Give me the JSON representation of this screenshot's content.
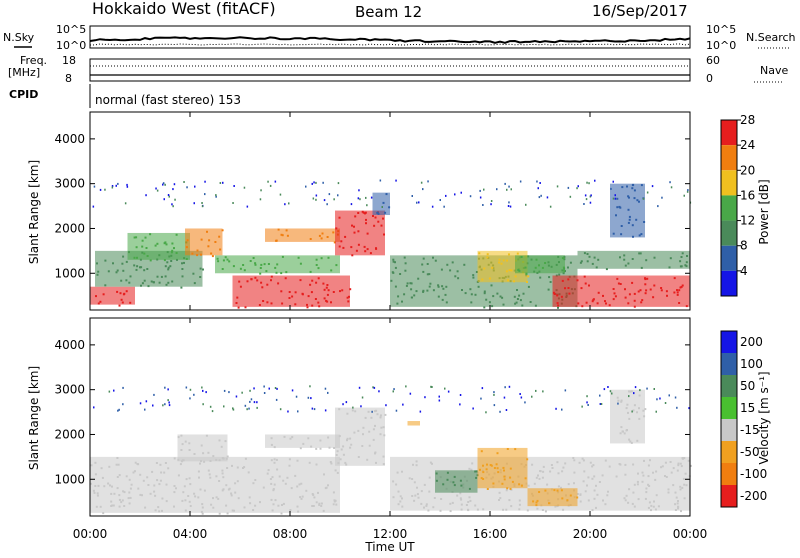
{
  "header": {
    "station": "Hokkaido West (fitACF)",
    "beam": "Beam 12",
    "date": "16/Sep/2017"
  },
  "mini_panels": {
    "nsky_label": "N.Sky",
    "nsearch_label": "N.Search",
    "freq_label_1": "Freq.",
    "freq_label_2": "[MHz]",
    "nave_label": "Nave",
    "cpid_label": "CPID",
    "cpid_text": "normal (fast stereo) 153",
    "noise_tick_top": "10^5",
    "noise_tick_bottom": "10^0",
    "freq_tick_top": "18",
    "freq_tick_bottom": "8",
    "nave_tick_top": "60",
    "nave_tick_bottom": "0"
  },
  "chart_data": [
    {
      "type": "heatmap",
      "name": "power",
      "ylabel": "Slant Range [km]",
      "yticks": [
        "1000",
        "2000",
        "3000",
        "4000"
      ],
      "ylim": [
        180,
        4600
      ],
      "colorbar_label": "Power [dB]",
      "colorbar_ticks": [
        "4",
        "8",
        "12",
        "16",
        "20",
        "24",
        "28"
      ],
      "colorbar_range": [
        0,
        30
      ],
      "colors": [
        "#1515e6",
        "#2f5fa8",
        "#4a8a5a",
        "#49a848",
        "#f0c020",
        "#f07e10",
        "#e61e1e"
      ],
      "regions": [
        {
          "t0": 0.0,
          "t1": 1.8,
          "r0": 300,
          "r1": 700,
          "level": 28
        },
        {
          "t0": 0.2,
          "t1": 4.5,
          "r0": 700,
          "r1": 1500,
          "level": 8
        },
        {
          "t0": 1.5,
          "t1": 4.0,
          "r0": 1300,
          "r1": 1900,
          "level": 14
        },
        {
          "t0": 3.8,
          "t1": 5.3,
          "r0": 1400,
          "r1": 2000,
          "level": 20
        },
        {
          "t0": 5.7,
          "t1": 10.4,
          "r0": 250,
          "r1": 950,
          "level": 28
        },
        {
          "t0": 5.0,
          "t1": 10.0,
          "r0": 1000,
          "r1": 1400,
          "level": 14
        },
        {
          "t0": 7.0,
          "t1": 10.0,
          "r0": 1700,
          "r1": 2000,
          "level": 20
        },
        {
          "t0": 9.8,
          "t1": 11.8,
          "r0": 1400,
          "r1": 2400,
          "level": 26
        },
        {
          "t0": 11.3,
          "t1": 12.0,
          "r0": 2300,
          "r1": 2800,
          "level": 6
        },
        {
          "t0": 12.0,
          "t1": 19.5,
          "r0": 250,
          "r1": 1400,
          "level": 8
        },
        {
          "t0": 15.5,
          "t1": 17.5,
          "r0": 800,
          "r1": 1500,
          "level": 18
        },
        {
          "t0": 17.0,
          "t1": 19.0,
          "r0": 1000,
          "r1": 1400,
          "level": 14
        },
        {
          "t0": 18.5,
          "t1": 24.0,
          "r0": 250,
          "r1": 950,
          "level": 26
        },
        {
          "t0": 19.5,
          "t1": 24.0,
          "r0": 1100,
          "r1": 1500,
          "level": 8
        },
        {
          "t0": 20.8,
          "t1": 22.2,
          "r0": 1800,
          "r1": 3000,
          "level": 6
        }
      ]
    },
    {
      "type": "heatmap",
      "name": "velocity",
      "ylabel": "Slant Range [km]",
      "yticks": [
        "1000",
        "2000",
        "3000",
        "4000"
      ],
      "ylim": [
        180,
        4600
      ],
      "xlabel": "Time UT",
      "xticks": [
        "00:00",
        "04:00",
        "08:00",
        "12:00",
        "16:00",
        "20:00",
        "00:00"
      ],
      "xlim": [
        0,
        24
      ],
      "colorbar_label": "Velocity [m s⁻¹]",
      "colorbar_ticks": [
        "200",
        "100",
        "50",
        "15",
        "-15",
        "-50",
        "-100",
        "-200"
      ],
      "colors": [
        "#1515e6",
        "#2f5fa8",
        "#4a8a5a",
        "#49c030",
        "#c8c8c8",
        "#f0a020",
        "#f07e10",
        "#e61e1e"
      ],
      "regions": [
        {
          "t0": 0.0,
          "t1": 10.0,
          "r0": 250,
          "r1": 1500,
          "level": "-15"
        },
        {
          "t0": 3.5,
          "t1": 5.5,
          "r0": 1400,
          "r1": 2000,
          "level": "-15"
        },
        {
          "t0": 7.0,
          "t1": 10.0,
          "r0": 1700,
          "r1": 2000,
          "level": "-15"
        },
        {
          "t0": 9.8,
          "t1": 11.8,
          "r0": 1300,
          "r1": 2600,
          "level": "-15"
        },
        {
          "t0": 12.0,
          "t1": 24.0,
          "r0": 300,
          "r1": 1500,
          "level": "-15"
        },
        {
          "t0": 13.8,
          "t1": 15.5,
          "r0": 700,
          "r1": 1200,
          "level": "50"
        },
        {
          "t0": 15.5,
          "t1": 17.5,
          "r0": 800,
          "r1": 1700,
          "level": "-50"
        },
        {
          "t0": 17.5,
          "t1": 19.5,
          "r0": 400,
          "r1": 800,
          "level": "-50"
        },
        {
          "t0": 12.7,
          "t1": 13.2,
          "r0": 2200,
          "r1": 2300,
          "level": "-50"
        },
        {
          "t0": 20.8,
          "t1": 22.2,
          "r0": 1800,
          "r1": 3000,
          "level": "-15"
        }
      ]
    }
  ]
}
